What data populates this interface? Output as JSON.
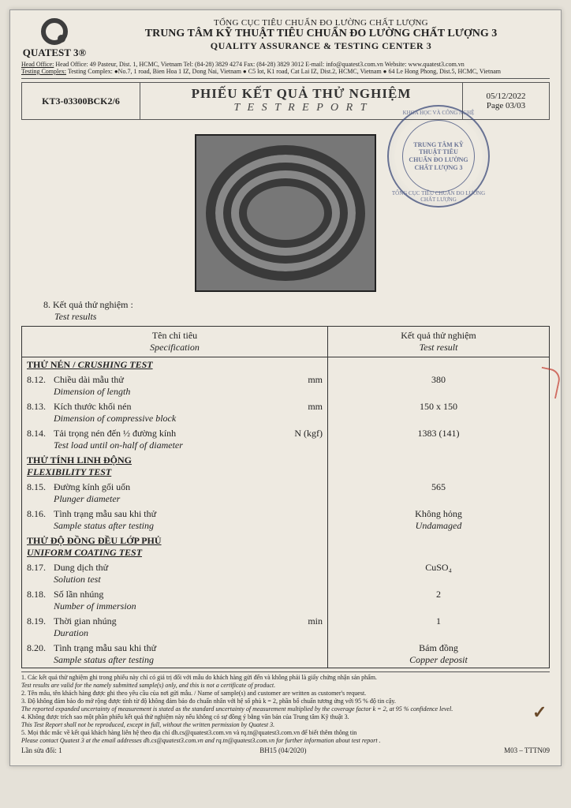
{
  "header": {
    "org_parent": "TỔNG CỤC TIÊU CHUẨN ĐO LƯỜNG CHẤT LƯỢNG",
    "org_vn": "TRUNG TÂM KỸ THUẬT TIÊU CHUẨN ĐO LƯỜNG CHẤT LƯỢNG 3",
    "org_en": "QUALITY ASSURANCE & TESTING CENTER 3",
    "logo_text": "QUATEST 3®",
    "addr_line1": "Head Office: 49 Pasteur, Dist. 1, HCMC, Vietnam   Tel: (84-28) 3829 4274   Fax: (84-28) 3829 3012   E-mail: info@quatest3.com.vn   Website: www.quatest3.com.vn",
    "addr_line2": "Testing Complex: ●No.7, 1 road, Bien Hoa 1 IZ, Dong Nai, Vietnam ● C5 lot, K1 road, Cat Lai IZ, Dist.2, HCMC, Vietnam ● 64 Le Hong Phong, Dist.5, HCMC, Vietnam"
  },
  "titlebar": {
    "doc_no": "KT3-03300BCK2/6",
    "title_vn": "PHIẾU KẾT QUẢ THỬ NGHIỆM",
    "title_en": "T E S T   R E P O R T",
    "date": "05/12/2022",
    "page": "Page 03/03"
  },
  "seal": {
    "ring_top": "KHOA HỌC VÀ CÔNG NGHỆ",
    "ring_bottom": "TỔNG CỤC TIÊU CHUẨN ĐO LƯỜNG CHẤT LƯỢNG",
    "inner": "TRUNG TÂM\nKỸ THUẬT\nTIÊU CHUẨN ĐO LƯỜNG\nCHẤT LƯỢNG 3"
  },
  "section8": {
    "vn": "8. Kết quả thử nghiệm :",
    "en": "Test results"
  },
  "table": {
    "head_spec_vn": "Tên chỉ tiêu",
    "head_spec_en": "Specification",
    "head_res_vn": "Kết quả thử nghiệm",
    "head_res_en": "Test result",
    "groups": [
      {
        "vn": "THỬ NÉN / ",
        "en": "CRUSHING TEST"
      },
      {
        "vn": "THỬ TÍNH LINH ĐỘNG",
        "en": "FLEXIBILITY TEST"
      },
      {
        "vn": "THỬ ĐỘ ĐỒNG ĐỀU LỚP PHỦ",
        "en": "UNIFORM COATING TEST"
      }
    ],
    "rows": [
      {
        "no": "8.12.",
        "vn": "Chiều dài mẫu thử",
        "en": "Dimension of length",
        "unit": "mm",
        "res": "380"
      },
      {
        "no": "8.13.",
        "vn": "Kích thước khối nén",
        "en": "Dimension of compressive block",
        "unit": "mm",
        "res": "150 x 150"
      },
      {
        "no": "8.14.",
        "vn": "Tải trọng nén đến ½ đường kính",
        "en": "Test load until on-half of diameter",
        "unit": "N (kgf)",
        "res": "1383 (141)"
      },
      {
        "no": "8.15.",
        "vn": "Đường kính gối uốn",
        "en": "Plunger diameter",
        "unit": "",
        "res": "565"
      },
      {
        "no": "8.16.",
        "vn": "Tình trạng mẫu sau khi thử",
        "en": "Sample status after testing",
        "unit": "",
        "res": "Không hỏng",
        "res_en": "Undamaged"
      },
      {
        "no": "8.17.",
        "vn": "Dung dịch thử",
        "en": "Solution test",
        "unit": "",
        "res": "CuSO₄"
      },
      {
        "no": "8.18.",
        "vn": "Số lần nhúng",
        "en": "Number of immersion",
        "unit": "",
        "res": "2"
      },
      {
        "no": "8.19.",
        "vn": "Thời gian nhúng",
        "en": "Duration",
        "unit": "min",
        "res": "1"
      },
      {
        "no": "8.20.",
        "vn": "Tình trạng mẫu sau khi thử",
        "en": "Sample status after testing",
        "unit": "",
        "res": "Bám đồng",
        "res_en": "Copper deposit"
      }
    ]
  },
  "notes": {
    "n1_vn": "1. Các kết quả thử nghiệm ghi trong phiếu này chỉ có giá trị đối với mẫu do khách hàng gửi đến và không phải là giấy chứng nhận sản phẩm.",
    "n1_en": "Test results are valid for the namely submitted sample(s) only, and this is not a certificate of product.",
    "n2_vn": "2. Tên mẫu, tên khách hàng được ghi theo yêu cầu của nơi gửi mẫu. / Name of sample(s) and customer are written as customer's request.",
    "n3_vn": "3. Độ không đảm bảo đo mở rộng được tính từ độ không đảm bảo đo chuẩn nhân với hệ số phủ k = 2, phần bổ chuẩn tương ứng với 95 % độ tin cậy.",
    "n3_en": "The reported expanded uncertainty of measurement is stated as the standard uncertainty of measurement multiplied by the coverage factor k = 2, at 95 % confidence level.",
    "n4_vn": "4. Không được trích sao một phần phiếu kết quả thử nghiệm này nếu không có sự đồng ý bằng văn bản của Trung tâm Kỹ thuật 3.",
    "n4_en": "This Test Report shall not be reproduced, except in full, without the written permission by Quatest 3.",
    "n5_vn": "5. Mọi thắc mắc về kết quả khách hàng liên hệ theo địa chỉ dh.cs@quatest3.com.vn và rq.tn@quatest3.com.vn để biết thêm thông tin",
    "n5_en": "Please contact Quatest 3 at the email addresses dh.cs@quatest3.com.vn and rq.tn@quatest3.com.vn for further information about test report ."
  },
  "footer": {
    "left": "Lần sửa đổi: 1",
    "center": "BH15 (04/2020)",
    "right": "M03 – TTTN09"
  },
  "colors": {
    "page_bg": "#eeeae1",
    "border": "#333333",
    "seal": "#3c4a7a",
    "text": "#222222"
  }
}
